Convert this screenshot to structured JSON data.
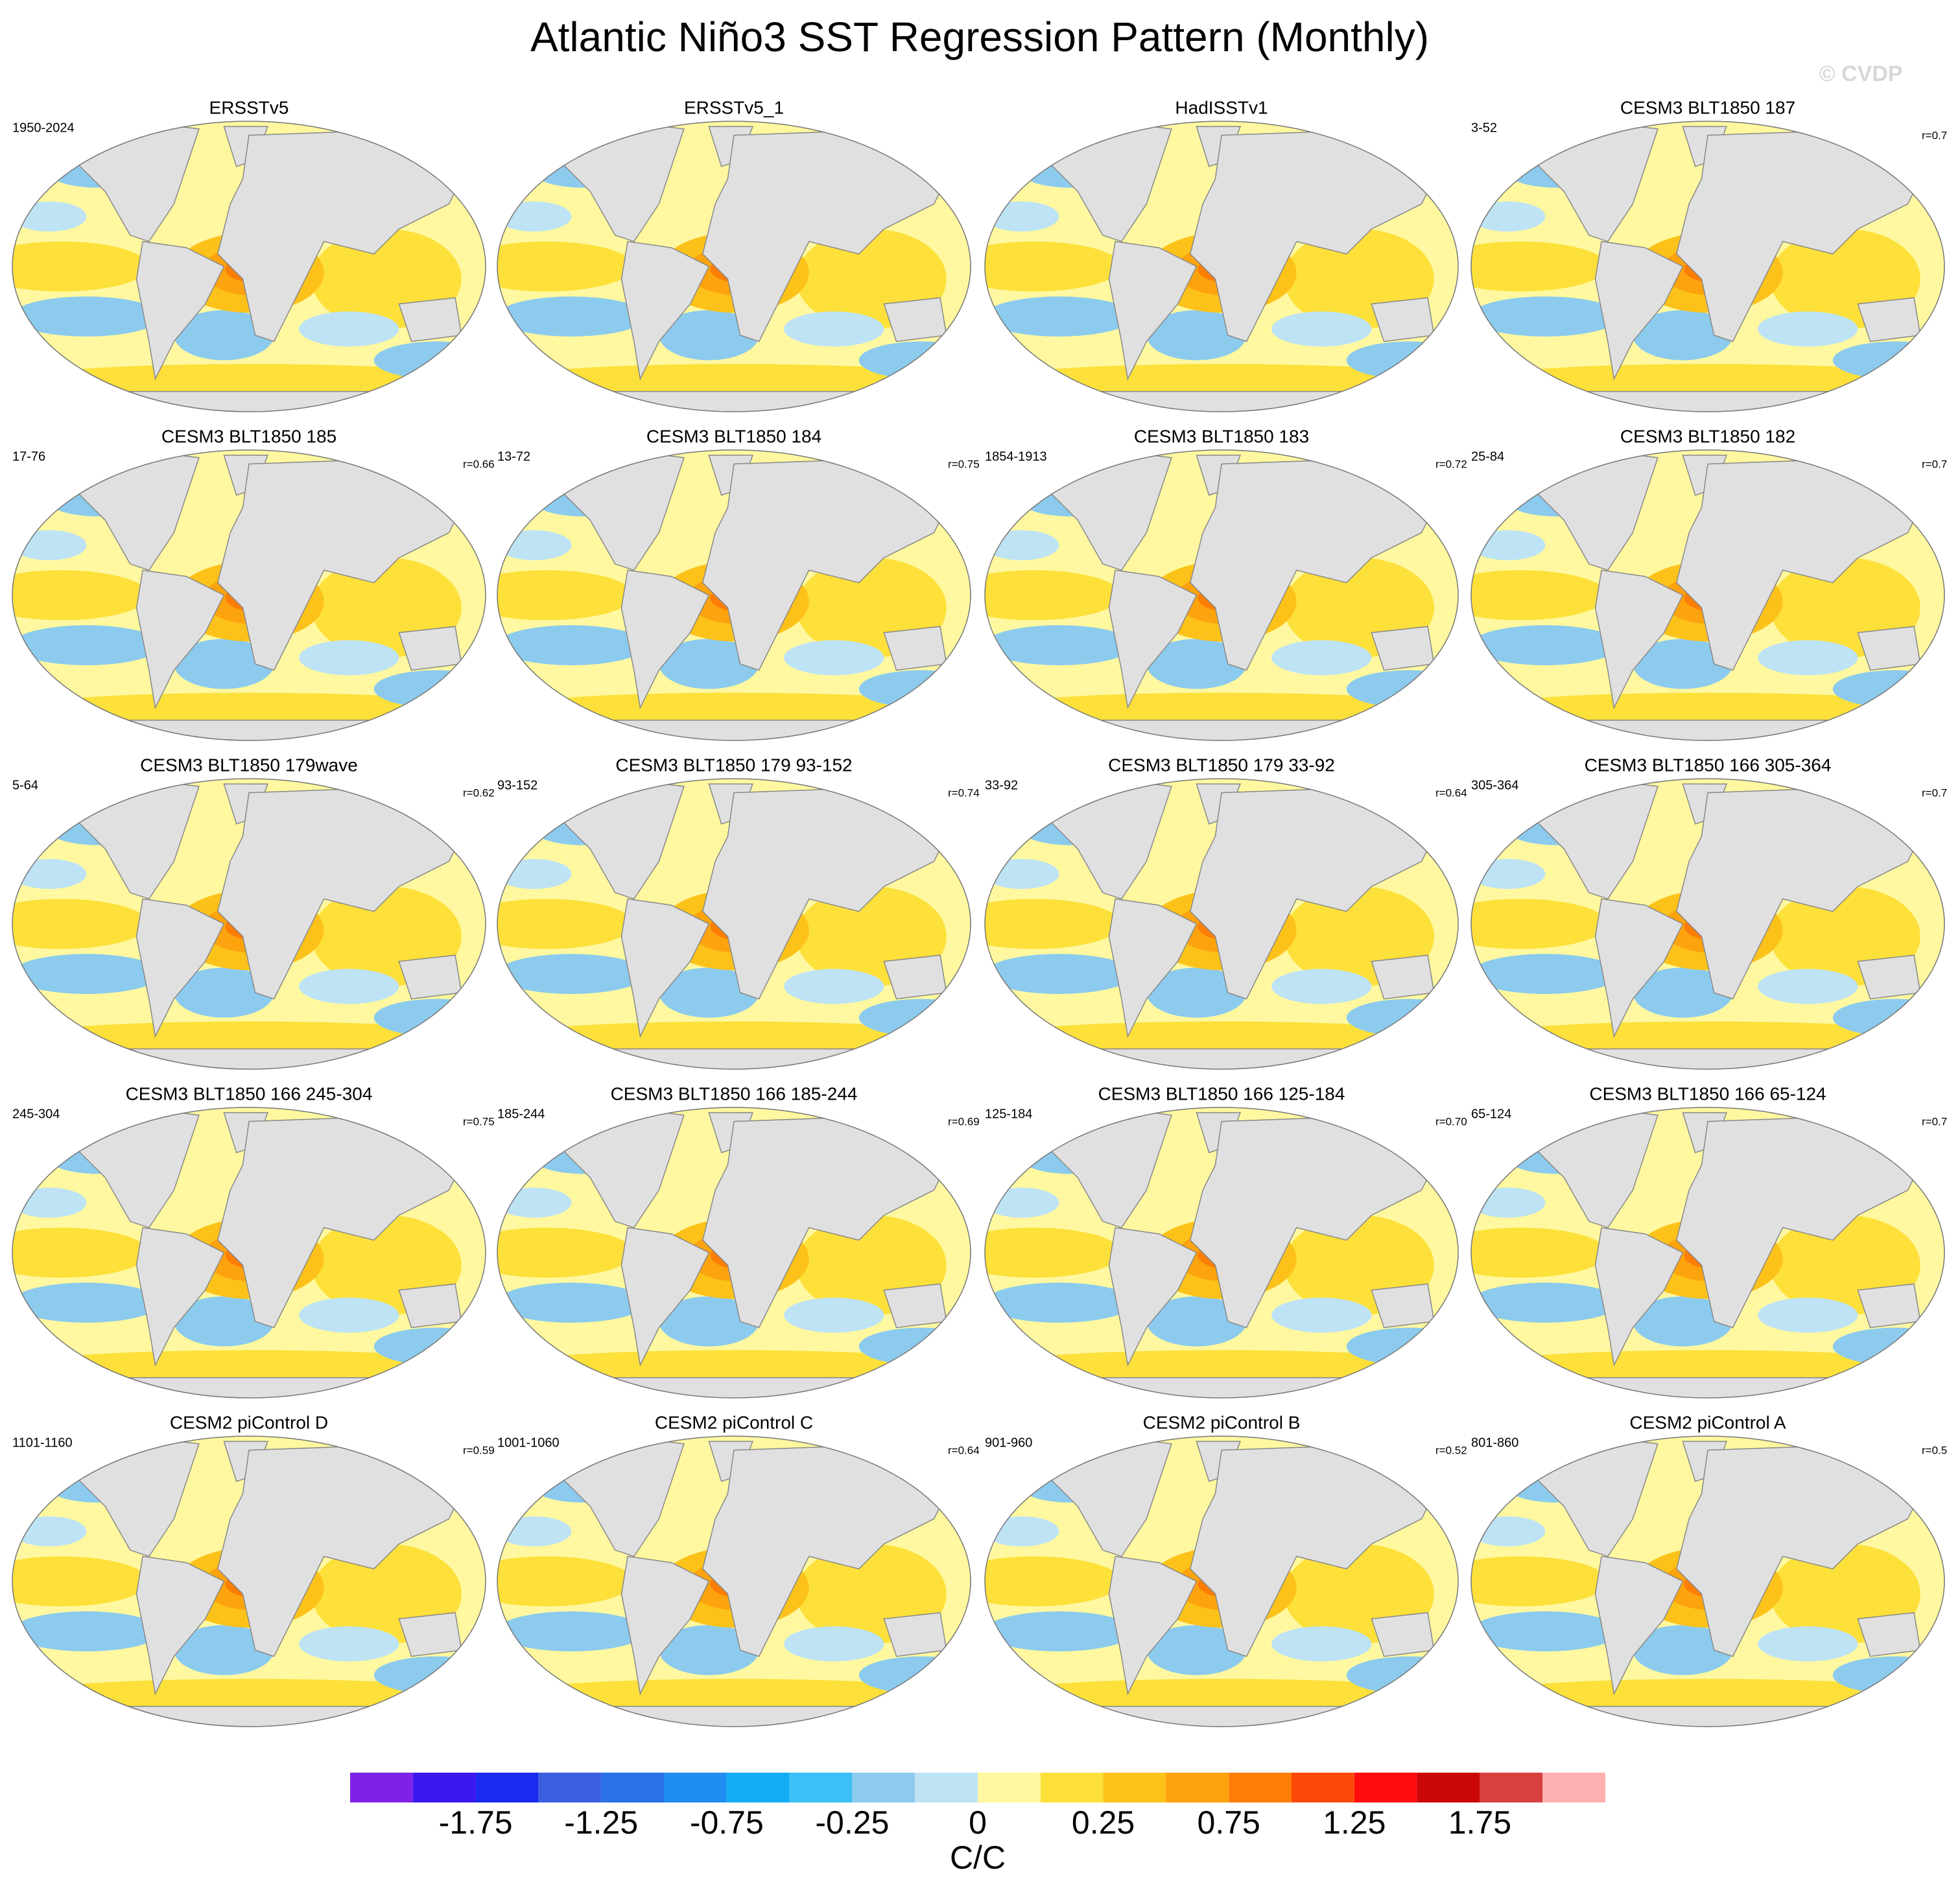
{
  "title": "Atlantic Niño3 SST Regression Pattern (Monthly)",
  "watermark": "© CVDP",
  "panels": [
    {
      "title": "ERSSTv5",
      "period": "1950-2024"
    },
    {
      "title": "ERSSTv5_1"
    },
    {
      "title": "HadISSTv1"
    },
    {
      "title": "CESM3 BLT1850 187",
      "period": "3-52",
      "r": "r=0.7"
    },
    {
      "title": "CESM3 BLT1850 185",
      "period": "17-76",
      "r": "r=0.66"
    },
    {
      "title": "CESM3 BLT1850 184",
      "period": "13-72",
      "r": "r=0.75"
    },
    {
      "title": "CESM3 BLT1850 183",
      "period": "1854-1913",
      "r": "r=0.72"
    },
    {
      "title": "CESM3 BLT1850 182",
      "period": "25-84",
      "r": "r=0.7"
    },
    {
      "title": "CESM3 BLT1850 179wave",
      "period": "5-64",
      "r": "r=0.62"
    },
    {
      "title": "CESM3 BLT1850 179 93-152",
      "period": "93-152",
      "r": "r=0.74"
    },
    {
      "title": "CESM3 BLT1850 179 33-92",
      "period": "33-92",
      "r": "r=0.64"
    },
    {
      "title": "CESM3 BLT1850 166 305-364",
      "period": "305-364",
      "r": "r=0.7"
    },
    {
      "title": "CESM3 BLT1850 166 245-304",
      "period": "245-304",
      "r": "r=0.75"
    },
    {
      "title": "CESM3 BLT1850 166 185-244",
      "period": "185-244",
      "r": "r=0.69"
    },
    {
      "title": "CESM3 BLT1850 166 125-184",
      "period": "125-184",
      "r": "r=0.70"
    },
    {
      "title": "CESM3 BLT1850 166 65-124",
      "period": "65-124",
      "r": "r=0.7"
    },
    {
      "title": "CESM2 piControl D",
      "period": "1101-1160",
      "r": "r=0.59"
    },
    {
      "title": "CESM2 piControl C",
      "period": "1001-1060",
      "r": "r=0.64"
    },
    {
      "title": "CESM2 piControl B",
      "period": "901-960",
      "r": "r=0.52"
    },
    {
      "title": "CESM2 piControl A",
      "period": "801-860",
      "r": "r=0.5"
    }
  ],
  "colorbar": {
    "colors": [
      "#7f22e8",
      "#3d17f0",
      "#1a2af0",
      "#3c5fe0",
      "#2a70e6",
      "#1e8cf0",
      "#12acf5",
      "#3cc0f5",
      "#8ccbee",
      "#bde3f5",
      "#fff8a0",
      "#fde03a",
      "#fdc21a",
      "#fda30e",
      "#fd7e06",
      "#fd4a0a",
      "#ff0c0c",
      "#cc0707",
      "#d84040",
      "#ffb0b0"
    ],
    "ticks": [
      -1.75,
      -1.25,
      -0.75,
      -0.25,
      0,
      0.25,
      0.75,
      1.25,
      1.75
    ],
    "label": "C/C"
  }
}
